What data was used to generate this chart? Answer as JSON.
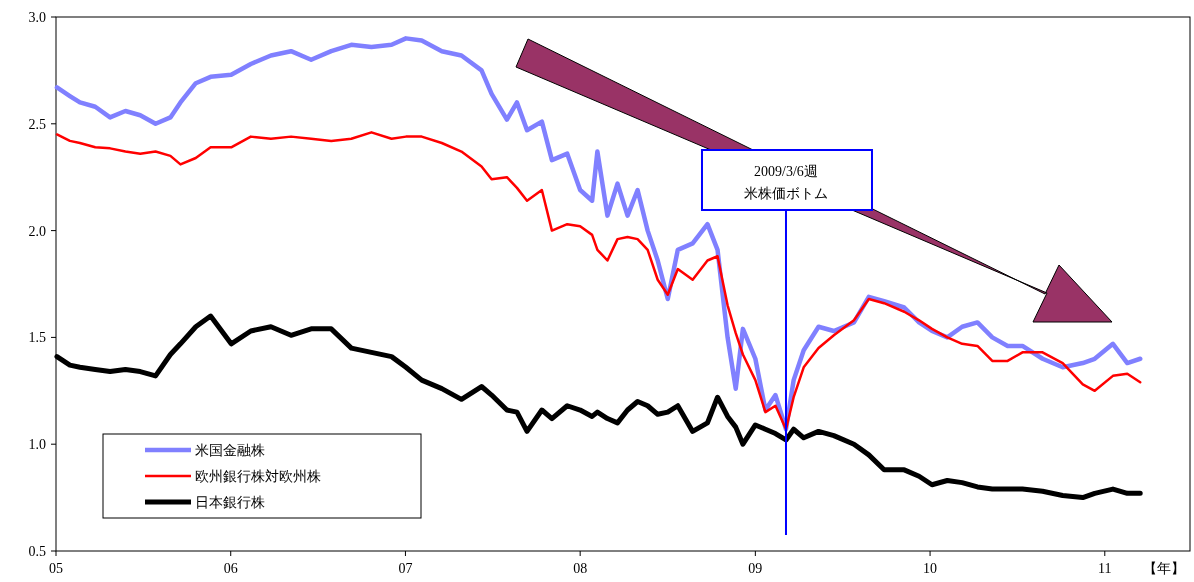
{
  "chart_data": {
    "type": "line",
    "xlabel": "【年】",
    "legend": "bottom left",
    "x": [
      "2005-01-03",
      "2005-01-30",
      "2005-02-20",
      "2005-03-24",
      "2005-04-24",
      "2005-05-26",
      "2005-06-26",
      "2005-07-28",
      "2005-08-28",
      "2005-09-18",
      "2005-10-20",
      "2005-11-20",
      "2006-01-02",
      "2006-02-12",
      "2006-03-26",
      "2006-05-07",
      "2006-06-18",
      "2006-07-30",
      "2006-09-10",
      "2006-10-22",
      "2006-12-03",
      "2007-01-02",
      "2007-02-04",
      "2007-03-18",
      "2007-04-28",
      "2007-06-09",
      "2007-06-30",
      "2007-08-01",
      "2007-08-22",
      "2007-09-12",
      "2007-10-13",
      "2007-11-03",
      "2007-12-05",
      "2008-01-01",
      "2008-01-26",
      "2008-02-06",
      "2008-02-27",
      "2008-03-19",
      "2008-04-09",
      "2008-04-30",
      "2008-05-21",
      "2008-06-11",
      "2008-07-02",
      "2008-07-23",
      "2008-08-23",
      "2008-09-23",
      "2008-10-14",
      "2008-11-04",
      "2008-11-21",
      "2008-12-06",
      "2009-01-01",
      "2009-01-22",
      "2009-02-12",
      "2009-03-06",
      "2009-03-22",
      "2009-04-12",
      "2009-05-13",
      "2009-06-14",
      "2009-07-26",
      "2009-08-26",
      "2009-09-27",
      "2009-11-08",
      "2009-12-09",
      "2010-01-05",
      "2010-02-06",
      "2010-03-09",
      "2010-04-10",
      "2010-05-11",
      "2010-06-12",
      "2010-07-13",
      "2010-08-24",
      "2010-10-05",
      "2010-11-16",
      "2010-12-11",
      "2011-01-18",
      "2011-02-17",
      "2011-03-16"
    ],
    "series": [
      {
        "name": "米国金融株",
        "color": "#8080ff",
        "values": [
          2.67,
          2.63,
          2.6,
          2.58,
          2.53,
          2.56,
          2.54,
          2.5,
          2.53,
          2.6,
          2.69,
          2.72,
          2.73,
          2.78,
          2.82,
          2.84,
          2.8,
          2.84,
          2.87,
          2.86,
          2.87,
          2.9,
          2.89,
          2.84,
          2.82,
          2.75,
          2.64,
          2.52,
          2.6,
          2.47,
          2.51,
          2.33,
          2.36,
          2.19,
          2.14,
          2.37,
          2.07,
          2.22,
          2.07,
          2.19,
          2.0,
          1.86,
          1.68,
          1.91,
          1.94,
          2.03,
          1.91,
          1.5,
          1.26,
          1.54,
          1.4,
          1.16,
          1.23,
          1.07,
          1.3,
          1.44,
          1.55,
          1.53,
          1.57,
          1.69,
          1.67,
          1.64,
          1.57,
          1.53,
          1.5,
          1.55,
          1.57,
          1.5,
          1.46,
          1.46,
          1.4,
          1.36,
          1.38,
          1.4,
          1.47,
          1.38,
          1.4
        ]
      },
      {
        "name": "欧州銀行株対欧州株",
        "color": "#ff0000",
        "values": [
          2.45,
          2.42,
          2.41,
          2.39,
          2.385,
          2.37,
          2.36,
          2.37,
          2.35,
          2.31,
          2.34,
          2.39,
          2.39,
          2.44,
          2.43,
          2.44,
          2.43,
          2.42,
          2.43,
          2.46,
          2.43,
          2.44,
          2.44,
          2.41,
          2.37,
          2.3,
          2.24,
          2.25,
          2.2,
          2.14,
          2.19,
          2.0,
          2.03,
          2.02,
          1.98,
          1.91,
          1.86,
          1.96,
          1.97,
          1.96,
          1.91,
          1.77,
          1.7,
          1.82,
          1.77,
          1.86,
          1.88,
          1.65,
          1.52,
          1.42,
          1.3,
          1.15,
          1.18,
          1.07,
          1.22,
          1.36,
          1.45,
          1.51,
          1.58,
          1.68,
          1.66,
          1.62,
          1.58,
          1.54,
          1.5,
          1.47,
          1.46,
          1.39,
          1.39,
          1.43,
          1.43,
          1.38,
          1.28,
          1.25,
          1.32,
          1.33,
          1.29
        ]
      },
      {
        "name": "日本銀行株",
        "color": "#000000",
        "values": [
          1.41,
          1.37,
          1.36,
          1.35,
          1.34,
          1.35,
          1.34,
          1.32,
          1.42,
          1.47,
          1.55,
          1.6,
          1.47,
          1.53,
          1.55,
          1.51,
          1.54,
          1.54,
          1.45,
          1.43,
          1.41,
          1.36,
          1.3,
          1.26,
          1.21,
          1.27,
          1.23,
          1.16,
          1.15,
          1.06,
          1.16,
          1.12,
          1.18,
          1.16,
          1.13,
          1.15,
          1.12,
          1.1,
          1.16,
          1.2,
          1.18,
          1.14,
          1.15,
          1.18,
          1.06,
          1.1,
          1.22,
          1.13,
          1.08,
          1.0,
          1.09,
          1.07,
          1.05,
          1.02,
          1.07,
          1.03,
          1.06,
          1.04,
          1.0,
          0.95,
          0.88,
          0.88,
          0.85,
          0.81,
          0.83,
          0.82,
          0.8,
          0.79,
          0.79,
          0.79,
          0.78,
          0.76,
          0.75,
          0.77,
          0.79,
          0.77,
          0.77
        ]
      }
    ],
    "xlim": [
      "2005-01-01",
      "2011-06-28"
    ],
    "xticks": [
      {
        "value": "2005-01-01",
        "label": "05"
      },
      {
        "value": "2006-01-01",
        "label": "06"
      },
      {
        "value": "2007-01-01",
        "label": "07"
      },
      {
        "value": "2008-01-01",
        "label": "08"
      },
      {
        "value": "2009-01-01",
        "label": "09"
      },
      {
        "value": "2010-01-01",
        "label": "10"
      },
      {
        "value": "2011-01-01",
        "label": "11"
      }
    ],
    "ylim": [
      0.5,
      3.0
    ],
    "yticks": [
      {
        "value": 0.5,
        "label": "0.5"
      },
      {
        "value": 1.0,
        "label": "1.0"
      },
      {
        "value": 1.5,
        "label": "1.5"
      },
      {
        "value": 2.0,
        "label": "2.0"
      },
      {
        "value": 2.5,
        "label": "2.5"
      },
      {
        "value": 3.0,
        "label": "3.0"
      }
    ],
    "ref_lines": [
      {
        "axis": "x",
        "value": "2009-03-06",
        "label": "2009/3/6週米株価ボトム",
        "color": "#0000ff"
      }
    ],
    "grid": false,
    "marker": "none",
    "line_style": "solid"
  }
}
